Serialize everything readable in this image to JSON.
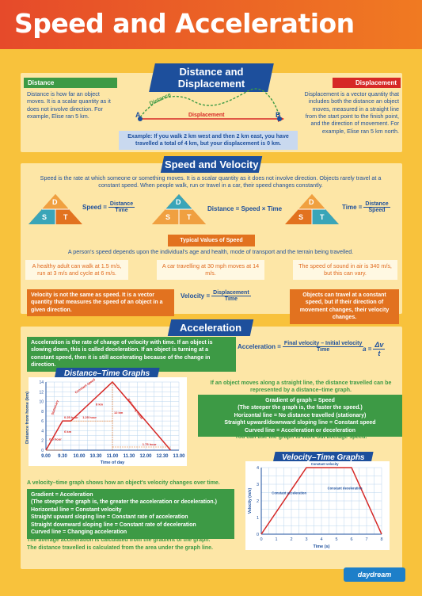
{
  "title": "Speed and Acceleration",
  "distance_section": {
    "heading": "Distance and Displacement",
    "distance_tag": "Distance",
    "distance_text": "Distance is how far an object moves. It is a scalar quantity as it does not involve direction. For example, Elise ran 5 km.",
    "displacement_tag": "Displacement",
    "displacement_text": "Displacement is a vector quantity that includes both the distance an object moves, measured in a straight line from the start point to the finish point, and the direction of movement. For example, Elise ran 5 km north.",
    "diagram_distance": "Distance",
    "diagram_displacement": "Displacement",
    "point_a": "A",
    "point_b": "B",
    "example": "Example: If you walk 2 km west and then 2 km east, you have travelled a total of 4 km, but your displacement is 0 km."
  },
  "speed_section": {
    "heading": "Speed and Velocity",
    "intro": "Speed is the rate at which someone or something moves. It is a scalar quantity as it does not involve direction. Objects rarely travel at a constant speed. When people walk, run or travel in a car, their speed changes constantly.",
    "tri_d": "D",
    "tri_s": "S",
    "tri_t": "T",
    "f1_lhs": "Speed =",
    "f1_num": "Distance",
    "f1_den": "Time",
    "f2": "Distance = Speed × Time",
    "f3_lhs": "Time =",
    "f3_num": "Distance",
    "f3_den": "Speed",
    "typical_tag": "Typical Values of Speed",
    "typical_intro": "A person's speed depends upon the individual's age and health, mode of transport and the terrain being travelled.",
    "typical_1": "A healthy adult can walk at 1.5 m/s, run at 3 m/s and cycle at 6 m/s.",
    "typical_2": "A car travelling at 30 mph moves at 14 m/s.",
    "typical_3": "The speed of sound in air is 340 m/s, but this can vary.",
    "velocity_def": "Velocity is not the same as speed. It is a vector quantity that measures the speed of an object in a given direction.",
    "v_lhs": "Velocity =",
    "v_num": "Displacement",
    "v_den": "Time",
    "velocity_note": "Objects can travel at a constant speed, but if their direction of movement changes, their velocity changes."
  },
  "accel_section": {
    "heading": "Acceleration",
    "def": "Acceleration is the rate of change of velocity with time. If an object is slowing down, this is called deceleration. If an object is turning at a constant speed, then it is still accelerating because of the change in direction.",
    "a_lhs": "Acceleration =",
    "a_num": "Final velocity – Initial velocity",
    "a_den": "Time",
    "a_short_lhs": "a =",
    "a_short_num": "Δv",
    "a_short_den": "t"
  },
  "dt_graph": {
    "heading": "Distance–Time Graphs",
    "ylabel": "Distance from home (km)",
    "xlabel": "Time of day",
    "x_ticks": [
      "9.00",
      "9.30",
      "10.00",
      "10.30",
      "11.00",
      "11.30",
      "12.00",
      "12.30",
      "13.00"
    ],
    "y_ticks": [
      "0",
      "2",
      "4",
      "6",
      "8",
      "10",
      "12",
      "14"
    ],
    "ann_1": "0.25 hour",
    "ann_2": "1.25 hour",
    "ann_3": "8 km",
    "ann_4": "0.5 hour",
    "ann_5": "6 km",
    "ann_6": "12 km",
    "ann_7": "1.75 hour",
    "ann_8": "Constant speed",
    "ann_9": "Stationary",
    "ann_10": "Returning home",
    "side_1": "If an object moves along a straight line, the distance travelled can be represented by a distance–time graph.",
    "side_2": "Gradient of graph = Speed",
    "side_3": "(The steeper the graph is, the faster the speed.)",
    "side_4": "Horizontal line = No distance travelled (stationary)",
    "side_5": "Straight upward/downward sloping line = Constant speed",
    "side_6": "Curved line = Acceleration or deceleration",
    "side_7": "You can use the graph to work out average speed."
  },
  "vt_graph": {
    "heading": "Velocity–Time Graphs",
    "ylabel": "Velocity (m/s)",
    "xlabel": "Time (s)",
    "x_ticks": [
      "0",
      "1",
      "2",
      "3",
      "4",
      "5",
      "6",
      "7",
      "8"
    ],
    "y_ticks": [
      "0",
      "1",
      "2",
      "3",
      "4"
    ],
    "ann_const": "Constant velocity",
    "ann_accel": "Constant acceleration",
    "ann_decel": "Constant deceleration",
    "side_1": "A velocity–time graph shows how an object's velocity changes over time.",
    "side_2": "Gradient = Acceleration",
    "side_3": "(The steeper the graph is, the greater the acceleration or deceleration.)",
    "side_4": "Horizontal line = Constant velocity",
    "side_5": "Straight upward sloping line = Constant rate of acceleration",
    "side_6": "Straight downward sloping line = Constant rate of deceleration",
    "side_7": "Curved line = Changing acceleration",
    "side_8": "The average acceleration is calculated from the gradient of the graph.",
    "side_9": "The distance travelled is calculated from the area under the graph line."
  },
  "logo": "daydream",
  "colors": {
    "navy": "#1d4f9c",
    "green": "#3d9a45",
    "orange": "#e2721f",
    "red": "#d62826",
    "yellow": "#f8c23c"
  }
}
